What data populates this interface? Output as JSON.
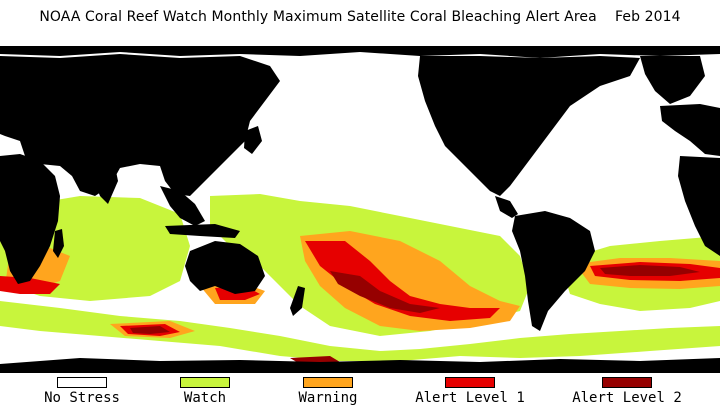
{
  "title": "NOAA Coral Reef Watch Monthly Maximum Satellite Coral Bleaching Alert Area    Feb 2014",
  "legend": [
    {
      "label": "No Stress",
      "color": "#ffffff"
    },
    {
      "label": "Watch",
      "color": "#c8f53c"
    },
    {
      "label": "Warning",
      "color": "#ffa51e"
    },
    {
      "label": "Alert Level 1",
      "color": "#e60000"
    },
    {
      "label": "Alert Level 2",
      "color": "#960000"
    }
  ],
  "colors": {
    "land": "#000000",
    "no_stress": "#ffffff",
    "watch": "#c8f53c",
    "warning": "#ffa51e",
    "alert1": "#e60000",
    "alert2": "#960000"
  }
}
